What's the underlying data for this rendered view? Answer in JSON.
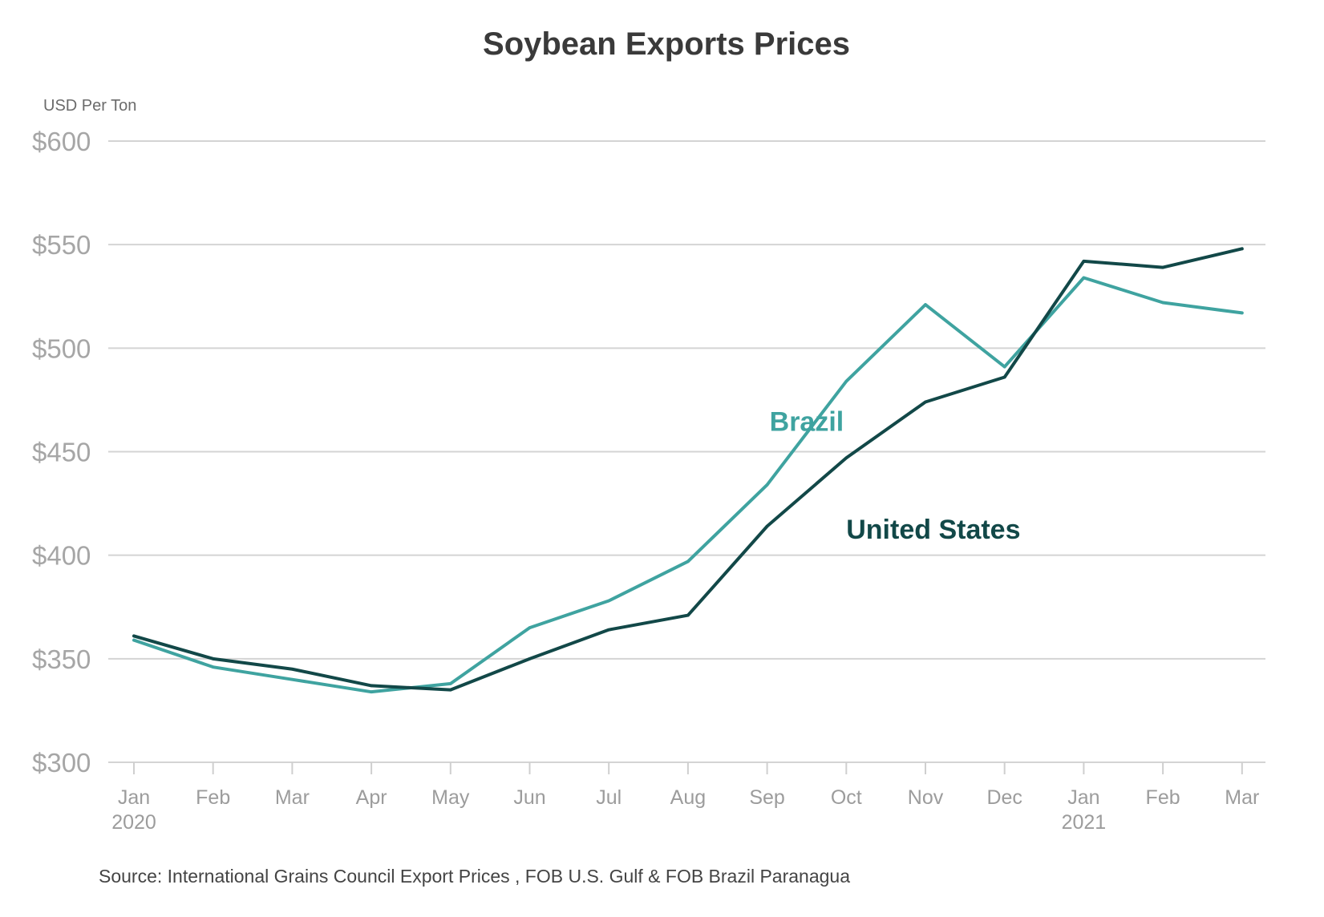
{
  "chart_data": {
    "type": "line",
    "title": "Soybean Exports Prices",
    "ylabel": "USD Per Ton",
    "xlabel": "",
    "ylim": [
      300,
      600
    ],
    "yticks": [
      300,
      350,
      400,
      450,
      500,
      550,
      600
    ],
    "ytick_labels": [
      "$300",
      "$350",
      "$400",
      "$450",
      "$500",
      "$550",
      "$600"
    ],
    "categories": [
      "Jan",
      "Feb",
      "Mar",
      "Apr",
      "May",
      "Jun",
      "Jul",
      "Aug",
      "Sep",
      "Oct",
      "Nov",
      "Dec",
      "Jan",
      "Feb",
      "Mar"
    ],
    "year_labels": [
      {
        "index": 0,
        "text": "2020"
      },
      {
        "index": 12,
        "text": "2021"
      }
    ],
    "grid": true,
    "series": [
      {
        "name": "Brazil",
        "color": "#3fa3a0",
        "values": [
          359,
          346,
          340,
          334,
          338,
          365,
          378,
          397,
          434,
          484,
          521,
          491,
          534,
          522,
          517
        ],
        "label_anchor": {
          "index": 8.5,
          "value": 460
        }
      },
      {
        "name": "United States",
        "color": "#124848",
        "values": [
          361,
          350,
          345,
          337,
          335,
          350,
          364,
          371,
          414,
          447,
          474,
          486,
          542,
          539,
          548
        ],
        "label_anchor": {
          "index": 10.1,
          "value": 408
        }
      }
    ],
    "source": "Source: International Grains Council Export Prices , FOB U.S. Gulf & FOB Brazil Paranagua"
  }
}
